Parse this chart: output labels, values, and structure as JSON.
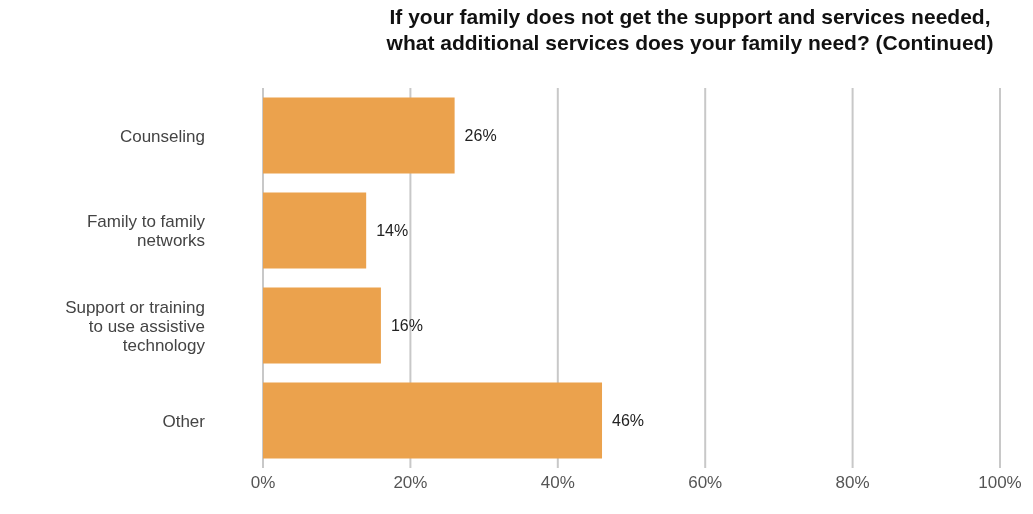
{
  "chart_data": {
    "type": "bar",
    "orientation": "horizontal",
    "title": "If your family does not get the support and services needed, what additional services does your family need? (Continued)",
    "categories": [
      "Counseling",
      "Family to family networks",
      "Support or training to use assistive technology",
      "Other"
    ],
    "values": [
      26,
      14,
      16,
      46
    ],
    "value_labels": [
      "26%",
      "14%",
      "16%",
      "46%"
    ],
    "color": "#eba24d",
    "xlim": [
      0,
      100
    ],
    "xticks": [
      {
        "value": 0,
        "label": "0%"
      },
      {
        "value": 20,
        "label": "20%"
      },
      {
        "value": 40,
        "label": "40%"
      },
      {
        "value": 60,
        "label": "60%"
      },
      {
        "value": 80,
        "label": "80%"
      },
      {
        "value": 100,
        "label": "100%"
      }
    ],
    "grid": "x"
  }
}
